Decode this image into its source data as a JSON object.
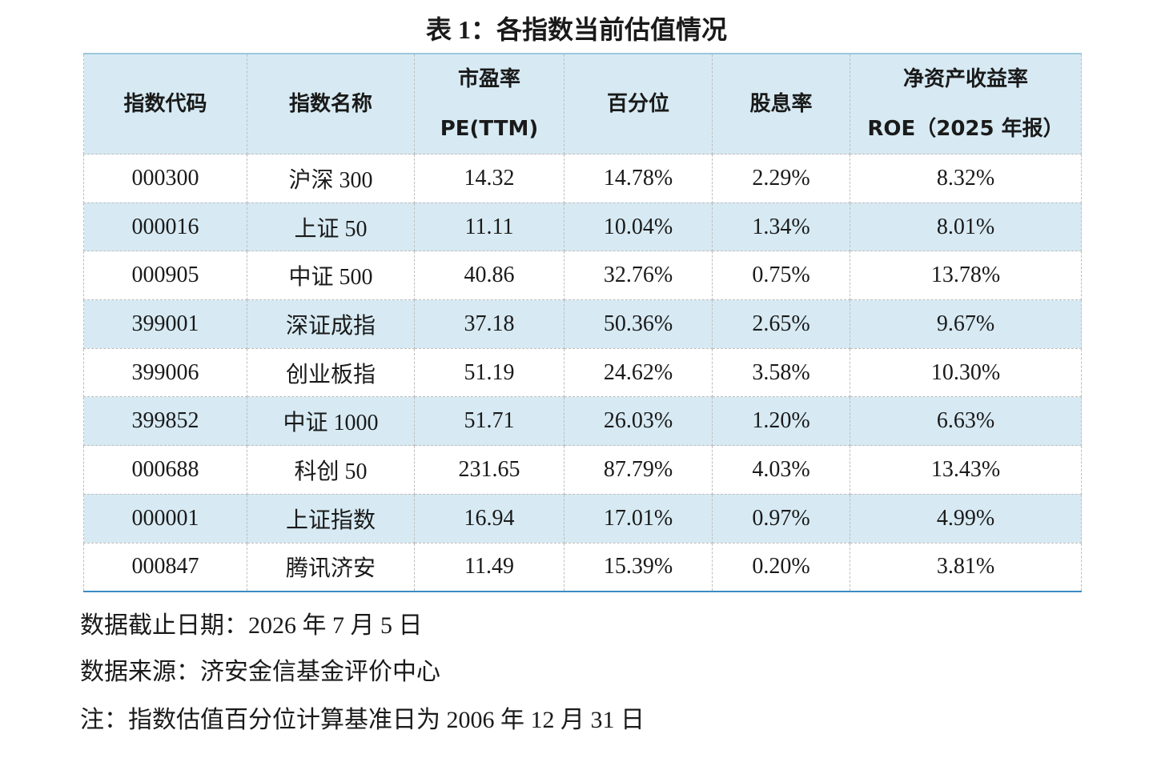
{
  "title": "表 1：各指数当前估值情况",
  "table": {
    "header": [
      [
        "指数代码"
      ],
      [
        "指数名称"
      ],
      [
        "市盈率",
        "PE(TTM)"
      ],
      [
        "百分位"
      ],
      [
        "股息率"
      ],
      [
        "净资产收益率",
        "ROE（2025 年报）"
      ]
    ],
    "rows": [
      [
        "000300",
        "沪深 300",
        "14.32",
        "14.78%",
        "2.29%",
        "8.32%"
      ],
      [
        "000016",
        "上证 50",
        "11.11",
        "10.04%",
        "1.34%",
        "8.01%"
      ],
      [
        "000905",
        "中证 500",
        "40.86",
        "32.76%",
        "0.75%",
        "13.78%"
      ],
      [
        "399001",
        "深证成指",
        "37.18",
        "50.36%",
        "2.65%",
        "9.67%"
      ],
      [
        "399006",
        "创业板指",
        "51.19",
        "24.62%",
        "3.58%",
        "10.30%"
      ],
      [
        "399852",
        "中证 1000",
        "51.71",
        "26.03%",
        "1.20%",
        "6.63%"
      ],
      [
        "000688",
        "科创 50",
        "231.65",
        "87.79%",
        "4.03%",
        "13.43%"
      ],
      [
        "000001",
        "上证指数",
        "16.94",
        "17.01%",
        "0.97%",
        "4.99%"
      ],
      [
        "000847",
        "腾讯济安",
        "11.49",
        "15.39%",
        "0.20%",
        "3.81%"
      ]
    ]
  },
  "notes": [
    "数据截止日期：2026 年 7 月 5 日",
    "数据来源：济安金信基金评价中心",
    "注：指数估值百分位计算基准日为 2006 年 12 月 31 日"
  ]
}
